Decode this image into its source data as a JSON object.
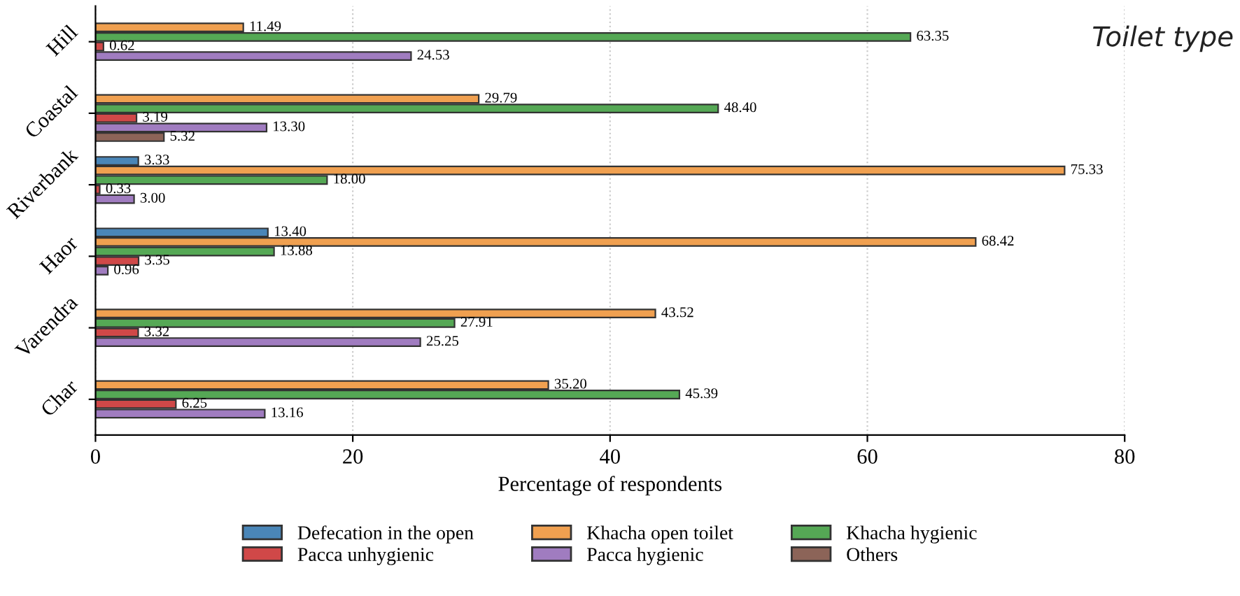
{
  "chart_data": {
    "type": "bar",
    "orientation": "horizontal",
    "title": "Toilet type",
    "xlabel": "Percentage of respondents",
    "categories": [
      "Hill",
      "Coastal",
      "Riverbank",
      "Haor",
      "Varendra",
      "Char"
    ],
    "series": [
      {
        "name": "Defecation in the open",
        "color": "#4a86b8",
        "values": [
          null,
          null,
          3.33,
          13.4,
          null,
          null
        ],
        "value_labels": [
          null,
          null,
          "3.33",
          "13.40",
          null,
          null
        ]
      },
      {
        "name": "Khacha open toilet",
        "color": "#f0a050",
        "values": [
          11.49,
          29.79,
          75.33,
          68.42,
          43.52,
          35.2
        ],
        "value_labels": [
          "11.49",
          "29.79",
          "75.33",
          "68.42",
          "43.52",
          "35.20"
        ]
      },
      {
        "name": "Khacha hygienic",
        "color": "#55a855",
        "values": [
          63.35,
          48.4,
          18.0,
          13.88,
          27.91,
          45.39
        ],
        "value_labels": [
          "63.35",
          "48.40",
          "18.00",
          "13.88",
          "27.91",
          "45.39"
        ]
      },
      {
        "name": "Pacca unhygienic",
        "color": "#d04848",
        "values": [
          0.62,
          3.19,
          0.33,
          3.35,
          3.32,
          6.25
        ],
        "value_labels": [
          "0.62",
          "3.19",
          "0.33",
          "3.35",
          "3.32",
          "6.25"
        ]
      },
      {
        "name": "Pacca hygienic",
        "color": "#a07cc0",
        "values": [
          24.53,
          13.3,
          3.0,
          0.96,
          25.25,
          13.16
        ],
        "value_labels": [
          "24.53",
          "13.30",
          "3.00",
          "0.96",
          "25.25",
          "13.16"
        ]
      },
      {
        "name": "Others",
        "color": "#8c6458",
        "values": [
          null,
          5.32,
          null,
          null,
          null,
          null
        ],
        "value_labels": [
          null,
          "5.32",
          null,
          null,
          null,
          null
        ]
      }
    ],
    "xlim": [
      0,
      80
    ],
    "xticks": [
      0,
      20,
      40,
      60,
      80
    ],
    "grid": "x",
    "legend": "bottom"
  }
}
